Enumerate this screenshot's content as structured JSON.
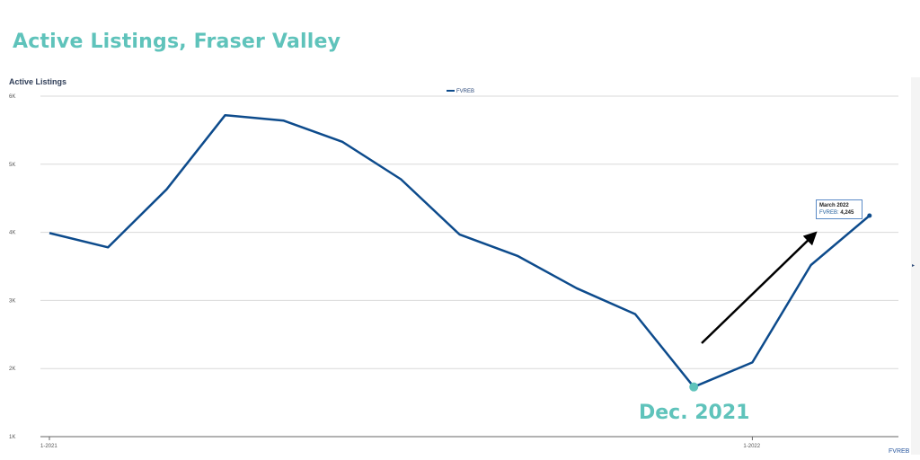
{
  "page": {
    "title": "Active Listings, Fraser Valley"
  },
  "chart_data": {
    "type": "line",
    "title": "Active Listings",
    "y_tick_labels": [
      "1K",
      "2K",
      "3K",
      "4K",
      "5K",
      "6K"
    ],
    "ylim": [
      1000,
      6000
    ],
    "x_tick_labels": [
      "1-2021",
      "1-2022"
    ],
    "x": [
      "1-2021",
      "2-2021",
      "3-2021",
      "4-2021",
      "5-2021",
      "6-2021",
      "7-2021",
      "8-2021",
      "9-2021",
      "10-2021",
      "11-2021",
      "12-2021",
      "1-2022",
      "2-2022",
      "3-2022"
    ],
    "series": [
      {
        "name": "FVREB",
        "color": "#0d4b8c",
        "values": [
          3990,
          3780,
          4630,
          5720,
          5640,
          5330,
          4780,
          3970,
          3650,
          3180,
          2800,
          1730,
          2090,
          3520,
          4245
        ]
      }
    ],
    "legend": {
      "position": "top-center",
      "label": "FVREB"
    },
    "grid": true,
    "source_label": "FVREB",
    "tooltip": {
      "date": "March 2022",
      "series": "FVREB:",
      "value": "4,245"
    },
    "annotation": {
      "label": "Dec. 2021",
      "point_index": 11,
      "color": "#5fc3bb"
    },
    "arrow": {
      "color": "#000000"
    }
  }
}
